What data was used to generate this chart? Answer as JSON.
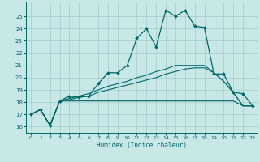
{
  "xlabel": "Humidex (Indice chaleur)",
  "background_color": "#c8e8e8",
  "grid_color": "#a8d0d0",
  "line_color": "#006868",
  "x_values": [
    0,
    1,
    2,
    3,
    4,
    5,
    6,
    7,
    8,
    9,
    10,
    11,
    12,
    13,
    14,
    15,
    16,
    17,
    18,
    19,
    20,
    21,
    22,
    23
  ],
  "y_main": [
    17.0,
    17.4,
    16.1,
    18.1,
    18.5,
    18.4,
    18.5,
    19.5,
    20.4,
    20.4,
    21.0,
    23.2,
    24.0,
    22.5,
    25.5,
    25.0,
    25.5,
    24.2,
    24.1,
    20.3,
    20.3,
    18.8,
    18.7,
    17.7
  ],
  "y_flat": [
    17.0,
    17.4,
    16.1,
    18.1,
    18.1,
    18.1,
    18.1,
    18.1,
    18.1,
    18.1,
    18.1,
    18.1,
    18.1,
    18.1,
    18.1,
    18.1,
    18.1,
    18.1,
    18.1,
    18.1,
    18.1,
    18.1,
    17.7,
    17.7
  ],
  "y_diag1": [
    17.0,
    17.4,
    16.1,
    18.1,
    18.2,
    18.4,
    18.5,
    18.8,
    19.0,
    19.2,
    19.4,
    19.6,
    19.8,
    20.0,
    20.3,
    20.5,
    20.7,
    20.8,
    20.8,
    20.4,
    19.7,
    18.8,
    17.7,
    17.7
  ],
  "y_diag2": [
    17.0,
    17.4,
    16.1,
    18.1,
    18.3,
    18.5,
    18.7,
    19.0,
    19.3,
    19.5,
    19.7,
    20.0,
    20.2,
    20.5,
    20.7,
    21.0,
    21.0,
    21.0,
    21.0,
    20.4,
    19.7,
    18.8,
    17.7,
    17.7
  ],
  "ylim": [
    15.5,
    26.2
  ],
  "xlim": [
    -0.5,
    23.5
  ],
  "yticks": [
    16,
    17,
    18,
    19,
    20,
    21,
    22,
    23,
    24,
    25
  ],
  "xticks": [
    0,
    1,
    2,
    3,
    4,
    5,
    6,
    7,
    8,
    9,
    10,
    11,
    12,
    13,
    14,
    15,
    16,
    17,
    18,
    19,
    20,
    21,
    22,
    23
  ]
}
